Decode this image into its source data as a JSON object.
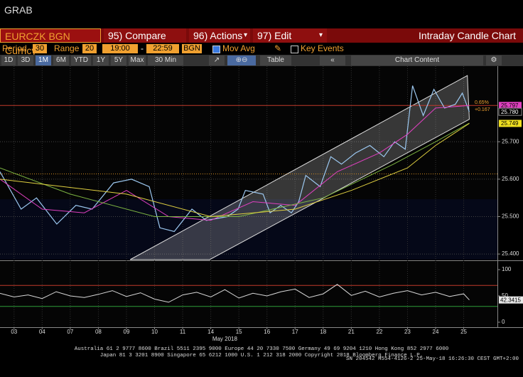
{
  "header": {
    "title": "GRAB"
  },
  "toolbar": {
    "security": "EURCZK BGN Curncy",
    "compare": "95) Compare",
    "actions": "96) Actions",
    "edit": "97) Edit",
    "chart_name": "Intraday Candle Chart"
  },
  "settings": {
    "period_label": "Period",
    "period": "30",
    "range_label": "Range",
    "range": "20",
    "start": "19:00",
    "dash": "-",
    "end": "22:59",
    "source": "BGN",
    "mov_avg": "Mov Avg",
    "key_events": "Key Events"
  },
  "buttons": [
    "1D",
    "3D",
    "1M",
    "6M",
    "YTD",
    "1Y",
    "5Y",
    "Max",
    "30 Min"
  ],
  "table": "Table",
  "chart_content": "Chart Content",
  "footer": [
    "Australia 61 2 9777 8600 Brazil 5511 2395 9000 Europe 44 20 7330 7500 Germany 49 69 9204 1210 Hong Kong 852 2977 6000",
    "Japan 81 3 3201 8900       Singapore 65 6212 1000       U.S. 1 212 318 2000          Copyright 2018 Bloomberg Finance L.P.",
    "SN 204542 H554-4126-2 25-May-18 16:26:30 CEST GMT+2:00"
  ],
  "chart_data": {
    "type": "line",
    "x_sublabel": "May 2018",
    "xlim": [
      -0.5,
      17.2
    ],
    "xticks": [
      {
        "value": 0,
        "label": "03"
      },
      {
        "value": 1,
        "label": "04"
      },
      {
        "value": 2,
        "label": "07"
      },
      {
        "value": 3,
        "label": "08"
      },
      {
        "value": 4,
        "label": "09"
      },
      {
        "value": 5,
        "label": "10"
      },
      {
        "value": 6,
        "label": "11"
      },
      {
        "value": 7,
        "label": "14"
      },
      {
        "value": 8,
        "label": "15"
      },
      {
        "value": 9,
        "label": "16"
      },
      {
        "value": 10,
        "label": "17"
      },
      {
        "value": 11,
        "label": "18"
      },
      {
        "value": 12,
        "label": "21"
      },
      {
        "value": 13,
        "label": "22"
      },
      {
        "value": 14,
        "label": "23"
      },
      {
        "value": 15,
        "label": "24"
      },
      {
        "value": 16,
        "label": "25"
      }
    ],
    "ylim": [
      25.385,
      25.902
    ],
    "yticks": [
      {
        "value": 25.7,
        "label": "25.700"
      },
      {
        "value": 25.6,
        "label": "25.600"
      },
      {
        "value": 25.5,
        "label": "25.500"
      },
      {
        "value": 25.4,
        "label": "25.400"
      }
    ],
    "y2lim": [
      -9.5,
      115
    ],
    "y2ticks": [
      100,
      50,
      0
    ],
    "grid": true,
    "channel": {
      "x_upper": [
        4.13,
        16.13
      ],
      "upper": [
        25.385,
        25.877
      ],
      "x_lower": [
        6.96,
        16.2
      ],
      "lower": [
        25.385,
        25.76
      ]
    },
    "price_lines": [
      {
        "value": 25.797,
        "color": "#c0392b"
      },
      {
        "value": 25.614,
        "color": "#d08a20"
      }
    ],
    "rsi_lines": [
      {
        "value": 70,
        "color": "#c0392b"
      },
      {
        "value": 30,
        "color": "#2e9e3a"
      }
    ],
    "series": [
      {
        "name": "Price",
        "color": "#9cc8f0",
        "width": 1.2,
        "x": [
          -0.5,
          0.25,
          0.8,
          1.52,
          2.2,
          2.78,
          3.54,
          4.18,
          4.81,
          5.19,
          5.7,
          6.33,
          6.84,
          7.59,
          7.97,
          8.23,
          8.86,
          9.11,
          9.49,
          9.87,
          10.13,
          10.38,
          10.89,
          11.27,
          11.65,
          12.15,
          12.66,
          13.16,
          13.54,
          13.92,
          14.18,
          14.56,
          14.94,
          15.32,
          15.7,
          15.95,
          16.2
        ],
        "values": [
          25.62,
          25.52,
          25.55,
          25.48,
          25.53,
          25.52,
          25.59,
          25.6,
          25.58,
          25.47,
          25.46,
          25.52,
          25.49,
          25.5,
          25.52,
          25.57,
          25.56,
          25.51,
          25.53,
          25.51,
          25.54,
          25.61,
          25.58,
          25.66,
          25.64,
          25.67,
          25.69,
          25.66,
          25.7,
          25.68,
          25.85,
          25.77,
          25.84,
          25.79,
          25.8,
          25.83,
          25.78
        ]
      },
      {
        "name": "MA fast",
        "color": "#e040c0",
        "width": 1,
        "x": [
          -0.5,
          1,
          2.5,
          4,
          5.5,
          7,
          8.5,
          10,
          11.5,
          13,
          14,
          15,
          16.2
        ],
        "values": [
          25.6,
          25.52,
          25.51,
          25.57,
          25.5,
          25.49,
          25.54,
          25.53,
          25.62,
          25.67,
          25.72,
          25.79,
          25.797
        ]
      },
      {
        "name": "MA mid",
        "color": "#7cb342",
        "width": 1,
        "x": [
          -0.5,
          2,
          5,
          8,
          11,
          13.5,
          15,
          16.2
        ],
        "values": [
          25.63,
          25.56,
          25.5,
          25.5,
          25.55,
          25.64,
          25.7,
          25.75
        ]
      },
      {
        "name": "MA slow",
        "color": "#e0d040",
        "width": 1,
        "x": [
          -0.5,
          4,
          7,
          10,
          12,
          14,
          15,
          16.2
        ],
        "values": [
          25.6,
          25.56,
          25.5,
          25.52,
          25.57,
          25.63,
          25.69,
          25.749
        ]
      },
      {
        "name": "RSI",
        "color": "#d8d8d8",
        "width": 1,
        "axis": "y2",
        "x": [
          -0.5,
          0,
          0.5,
          1,
          1.5,
          2,
          2.5,
          3,
          3.5,
          4,
          4.5,
          5,
          5.5,
          6,
          6.5,
          7,
          7.5,
          8,
          8.5,
          9,
          9.5,
          10,
          10.5,
          11,
          11.5,
          12,
          12.5,
          13,
          13.5,
          14,
          14.5,
          15,
          15.5,
          16,
          16.2
        ],
        "values": [
          55,
          48,
          52,
          45,
          58,
          50,
          47,
          53,
          60,
          49,
          56,
          44,
          38,
          52,
          57,
          48,
          62,
          46,
          55,
          50,
          58,
          63,
          47,
          54,
          72,
          51,
          59,
          48,
          55,
          60,
          52,
          57,
          49,
          54,
          42.3415
        ]
      }
    ],
    "price_tags": [
      {
        "value": 25.797,
        "bg": "#e040c0",
        "fg": "#000000"
      },
      {
        "value": 25.78,
        "label": "25.780",
        "bg": "#000000",
        "fg": "#ffffff"
      },
      {
        "value": 25.749,
        "bg": "#f0e020",
        "fg": "#000000"
      }
    ],
    "rsi_tag": {
      "value": 42.3415,
      "bg": "#e8e8e8",
      "fg": "#000000"
    },
    "annotations": [
      "0.65%",
      "+0.167"
    ]
  }
}
